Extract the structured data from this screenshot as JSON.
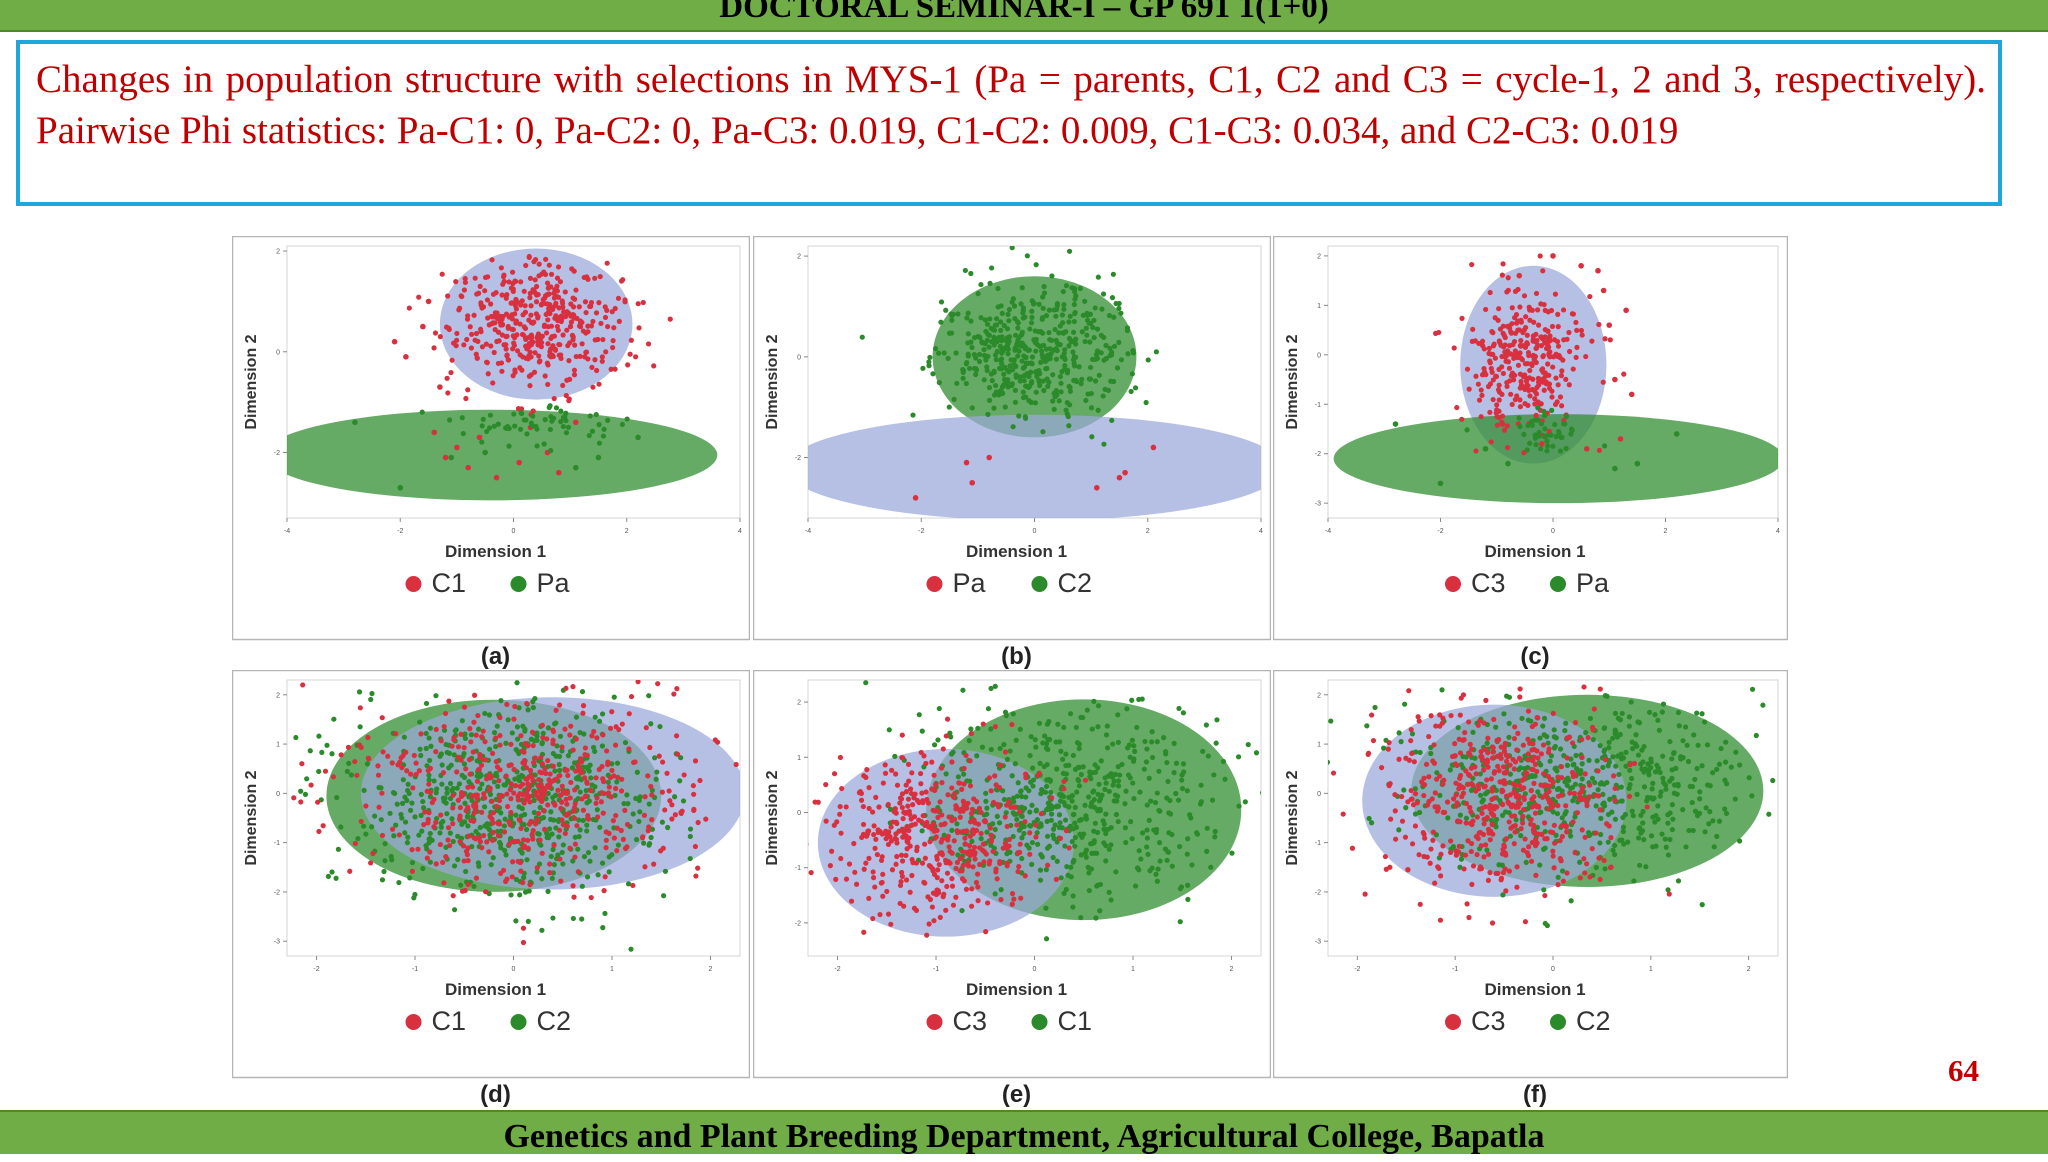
{
  "slide": {
    "header": "DOCTORAL SEMINAR-I – GP 691 1(1+0)",
    "caption": "Changes in population structure with selections in MYS-1 (Pa = parents, C1, C2 and C3 = cycle-1, 2 and 3, respectively). Pairwise Phi statistics: Pa-C1: 0, Pa-C2: 0, Pa-C3: 0.019, C1-C2: 0.009, C1-C3: 0.034, and C2-C3: 0.019",
    "footer": "Genetics and Plant Breeding Department, Agricultural College, Bapatla",
    "page_number": "64"
  },
  "colors": {
    "red": "#d9303f",
    "green": "#2b8a2a",
    "blue_ellipse": "#9aa8d9",
    "green_ellipse": "#cfe09a",
    "bar_green": "#70ad47"
  },
  "chart_data": [
    {
      "id": "a",
      "type": "scatter",
      "label": "(a)",
      "xlabel": "Dimension 1",
      "ylabel": "Dimension 2",
      "xlim": [
        -4,
        4
      ],
      "ylim": [
        -3.3,
        2.1
      ],
      "xticks": [
        "-4",
        "-2",
        "0",
        "2",
        "4"
      ],
      "yticks": [
        "2",
        "0",
        "-2"
      ],
      "legend": [
        {
          "name": "C1",
          "color": "red"
        },
        {
          "name": "Pa",
          "color": "green"
        }
      ],
      "groups": [
        {
          "name": "C1",
          "color": "red",
          "ellipse": {
            "cx": 0.4,
            "cy": 0.55,
            "rx": 1.7,
            "ry": 1.5,
            "fill": "blue"
          },
          "count": 440,
          "cx": 0.4,
          "cy": 0.6,
          "sx": 0.75,
          "sy": 0.65,
          "outliers": [
            [
              -2.1,
              0.2
            ],
            [
              -1.9,
              -0.1
            ],
            [
              -1.6,
              0.5
            ],
            [
              -1.4,
              -1.6
            ],
            [
              -1.2,
              -2.1
            ],
            [
              -1.0,
              -1.9
            ],
            [
              -0.8,
              -2.3
            ],
            [
              -0.6,
              -1.7
            ],
            [
              -0.3,
              -2.5
            ],
            [
              0.1,
              -2.2
            ],
            [
              0.3,
              -1.5
            ],
            [
              0.6,
              -2.0
            ],
            [
              0.8,
              -2.4
            ],
            [
              1.1,
              -1.4
            ],
            [
              -1.5,
              1.0
            ],
            [
              -1.3,
              -0.7
            ]
          ]
        },
        {
          "name": "Pa",
          "color": "green",
          "ellipse": {
            "cx": -0.4,
            "cy": -2.05,
            "rx": 4.0,
            "ry": 0.9,
            "fill": "green"
          },
          "count": 60,
          "cx": 0.3,
          "cy": -1.45,
          "sx": 0.7,
          "sy": 0.2,
          "outliers": [
            [
              -2.8,
              -1.4
            ],
            [
              -2.0,
              -2.7
            ],
            [
              -1.1,
              -2.1
            ],
            [
              1.1,
              -2.3
            ],
            [
              1.5,
              -2.1
            ],
            [
              2.2,
              -1.7
            ],
            [
              -0.5,
              -2.0
            ],
            [
              0.9,
              -1.3
            ]
          ]
        }
      ]
    },
    {
      "id": "b",
      "type": "scatter",
      "label": "(b)",
      "xlabel": "Dimension 1",
      "ylabel": "Dimension 2",
      "xlim": [
        -4,
        4
      ],
      "ylim": [
        -3.2,
        2.2
      ],
      "xticks": [
        "-4",
        "-2",
        "0",
        "2",
        "4"
      ],
      "yticks": [
        "2",
        "0",
        "-2"
      ],
      "legend": [
        {
          "name": "Pa",
          "color": "red"
        },
        {
          "name": "C2",
          "color": "green"
        }
      ],
      "groups": [
        {
          "name": "C2",
          "color": "green",
          "ellipse": {
            "cx": 0.0,
            "cy": 0.0,
            "rx": 1.8,
            "ry": 1.6,
            "fill": "green"
          },
          "count": 470,
          "cx": 0.0,
          "cy": 0.1,
          "sx": 0.8,
          "sy": 0.7,
          "outliers": []
        },
        {
          "name": "Pa",
          "color": "red",
          "ellipse": {
            "cx": 0.0,
            "cy": -2.2,
            "rx": 4.4,
            "ry": 1.05,
            "fill": "blue"
          },
          "count": 0,
          "cx": 0,
          "cy": 0,
          "sx": 0,
          "sy": 0,
          "outliers": [
            [
              -2.1,
              -2.8
            ],
            [
              -1.1,
              -2.5
            ],
            [
              -1.2,
              -2.1
            ],
            [
              1.1,
              -2.6
            ],
            [
              1.5,
              -2.4
            ],
            [
              1.6,
              -2.3
            ],
            [
              2.1,
              -1.8
            ],
            [
              -0.8,
              -2.0
            ]
          ]
        }
      ]
    },
    {
      "id": "c",
      "type": "scatter",
      "label": "(c)",
      "xlabel": "Dimension 1",
      "ylabel": "Dimension 2",
      "xlim": [
        -4,
        4
      ],
      "ylim": [
        -3.3,
        2.2
      ],
      "xticks": [
        "-4",
        "-2",
        "0",
        "2",
        "4"
      ],
      "yticks": [
        "2",
        "1",
        "0",
        "-1",
        "-2",
        "-3"
      ],
      "legend": [
        {
          "name": "C3",
          "color": "red"
        },
        {
          "name": "Pa",
          "color": "green"
        }
      ],
      "groups": [
        {
          "name": "C3",
          "color": "red",
          "ellipse": {
            "cx": -0.35,
            "cy": -0.2,
            "rx": 1.3,
            "ry": 2.0,
            "fill": "blue"
          },
          "count": 330,
          "cx": -0.5,
          "cy": 0.0,
          "sx": 0.5,
          "sy": 0.75,
          "outliers": [
            [
              0.0,
              2.0
            ],
            [
              0.5,
              1.8
            ],
            [
              0.8,
              1.7
            ],
            [
              0.9,
              1.3
            ],
            [
              1.0,
              0.6
            ],
            [
              1.3,
              0.9
            ],
            [
              1.1,
              -0.5
            ],
            [
              1.4,
              -0.8
            ],
            [
              1.2,
              -1.7
            ],
            [
              0.6,
              -1.9
            ],
            [
              -0.2,
              -1.8
            ],
            [
              -0.9,
              -1.4
            ],
            [
              -0.6,
              1.6
            ]
          ]
        },
        {
          "name": "Pa",
          "color": "green",
          "ellipse": {
            "cx": 0.1,
            "cy": -2.1,
            "rx": 4.0,
            "ry": 0.9,
            "fill": "green"
          },
          "count": 45,
          "cx": -0.1,
          "cy": -1.55,
          "sx": 0.4,
          "sy": 0.2,
          "outliers": [
            [
              -2.8,
              -1.4
            ],
            [
              -2.0,
              -2.6
            ],
            [
              -1.2,
              -1.9
            ],
            [
              -0.8,
              -2.2
            ],
            [
              1.1,
              -2.3
            ],
            [
              1.5,
              -2.2
            ],
            [
              2.2,
              -1.6
            ]
          ]
        }
      ]
    },
    {
      "id": "d",
      "type": "scatter",
      "label": "(d)",
      "xlabel": "Dimension 1",
      "ylabel": "Dimension 2",
      "xlim": [
        -2.3,
        2.3
      ],
      "ylim": [
        -3.3,
        2.3
      ],
      "xticks": [
        "-2",
        "-1",
        "0",
        "1",
        "2"
      ],
      "yticks": [
        "2",
        "1",
        "0",
        "-1",
        "-2",
        "-3"
      ],
      "legend": [
        {
          "name": "C1",
          "color": "red"
        },
        {
          "name": "C2",
          "color": "green"
        }
      ],
      "groups": [
        {
          "name": "C2",
          "color": "green",
          "ellipse": {
            "cx": -0.2,
            "cy": -0.05,
            "rx": 1.7,
            "ry": 1.95,
            "fill": "green"
          },
          "count": 620,
          "cx": 0.0,
          "cy": -0.1,
          "sx": 0.8,
          "sy": 0.95,
          "outliers": []
        },
        {
          "name": "C1",
          "color": "red",
          "ellipse": {
            "cx": 0.4,
            "cy": 0.0,
            "rx": 1.95,
            "ry": 1.95,
            "fill": "blue"
          },
          "count": 520,
          "cx": 0.15,
          "cy": 0.0,
          "sx": 0.85,
          "sy": 0.95,
          "outliers": []
        }
      ]
    },
    {
      "id": "e",
      "type": "scatter",
      "label": "(e)",
      "xlabel": "Dimension 1",
      "ylabel": "Dimension 2",
      "xlim": [
        -2.3,
        2.3
      ],
      "ylim": [
        -2.6,
        2.4
      ],
      "xticks": [
        "-2",
        "-1",
        "0",
        "1",
        "2"
      ],
      "yticks": [
        "2",
        "1",
        "0",
        "-1",
        "-2"
      ],
      "legend": [
        {
          "name": "C3",
          "color": "red"
        },
        {
          "name": "C1",
          "color": "green"
        }
      ],
      "groups": [
        {
          "name": "C1",
          "color": "green",
          "ellipse": {
            "cx": 0.5,
            "cy": 0.05,
            "rx": 1.6,
            "ry": 2.0,
            "fill": "green"
          },
          "count": 560,
          "cx": 0.35,
          "cy": 0.2,
          "sx": 0.8,
          "sy": 0.85,
          "outliers": []
        },
        {
          "name": "C3",
          "color": "red",
          "ellipse": {
            "cx": -0.9,
            "cy": -0.55,
            "rx": 1.3,
            "ry": 1.7,
            "fill": "blue"
          },
          "count": 440,
          "cx": -0.95,
          "cy": -0.45,
          "sx": 0.55,
          "sy": 0.75,
          "outliers": []
        }
      ]
    },
    {
      "id": "f",
      "type": "scatter",
      "label": "(f)",
      "xlabel": "Dimension 1",
      "ylabel": "Dimension 2",
      "xlim": [
        -2.3,
        2.3
      ],
      "ylim": [
        -3.3,
        2.3
      ],
      "xticks": [
        "-2",
        "-1",
        "0",
        "1",
        "2"
      ],
      "yticks": [
        "2",
        "1",
        "0",
        "-1",
        "-2",
        "-3"
      ],
      "legend": [
        {
          "name": "C3",
          "color": "red"
        },
        {
          "name": "C2",
          "color": "green"
        }
      ],
      "groups": [
        {
          "name": "C2",
          "color": "green",
          "ellipse": {
            "cx": 0.35,
            "cy": 0.05,
            "rx": 1.8,
            "ry": 1.95,
            "fill": "green"
          },
          "count": 560,
          "cx": 0.25,
          "cy": 0.15,
          "sx": 0.85,
          "sy": 0.85,
          "outliers": []
        },
        {
          "name": "C3",
          "color": "red",
          "ellipse": {
            "cx": -0.6,
            "cy": -0.15,
            "rx": 1.35,
            "ry": 1.95,
            "fill": "blue"
          },
          "count": 500,
          "cx": -0.55,
          "cy": -0.05,
          "sx": 0.6,
          "sy": 0.9,
          "outliers": []
        }
      ]
    }
  ]
}
